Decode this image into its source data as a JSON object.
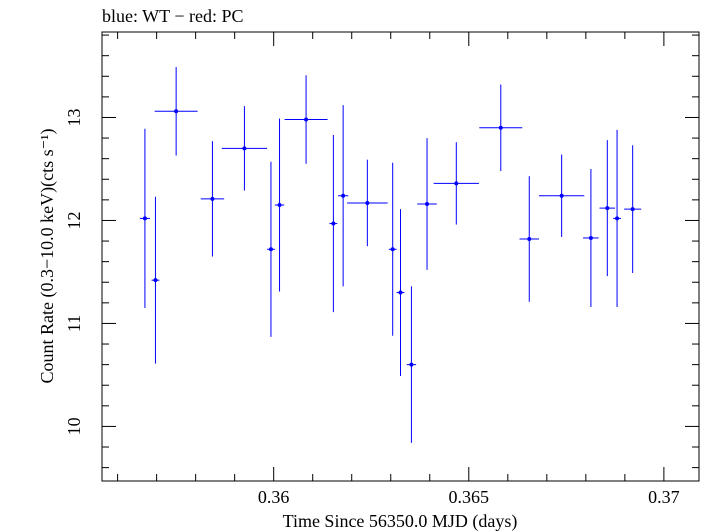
{
  "chart_data": {
    "type": "scatter",
    "title": "blue: WT − red: PC",
    "xlabel": "Time Since 56350.0 MJD (days)",
    "ylabel": "Count Rate (0.3−10.0 keV)(cts s⁻¹)",
    "xlim": [
      0.3556,
      0.3709
    ],
    "ylim": [
      9.47,
      13.83
    ],
    "xticks": [
      0.36,
      0.365,
      0.37
    ],
    "xtick_labels": [
      "0.36",
      "0.365",
      "0.37"
    ],
    "yticks": [
      10,
      11,
      12,
      13
    ],
    "ytick_labels": [
      "10",
      "11",
      "12",
      "13"
    ],
    "grid": false,
    "series": [
      {
        "color": "#0000ff",
        "points": [
          {
            "x": 0.3567,
            "xerr": 0.00013,
            "y": 12.02,
            "yerr": 0.87
          },
          {
            "x": 0.35697,
            "xerr": 0.0001,
            "y": 11.42,
            "yerr": 0.81
          },
          {
            "x": 0.3575,
            "xerr": 0.00055,
            "y": 13.06,
            "yerr": 0.43
          },
          {
            "x": 0.35843,
            "xerr": 0.0003,
            "y": 12.21,
            "yerr": 0.56
          },
          {
            "x": 0.35925,
            "xerr": 0.00058,
            "y": 12.7,
            "yerr": 0.41
          },
          {
            "x": 0.35993,
            "xerr": 0.0001,
            "y": 11.72,
            "yerr": 0.85
          },
          {
            "x": 0.36015,
            "xerr": 0.00012,
            "y": 12.15,
            "yerr": 0.84
          },
          {
            "x": 0.36083,
            "xerr": 0.00055,
            "y": 12.98,
            "yerr": 0.43
          },
          {
            "x": 0.36153,
            "xerr": 0.0001,
            "y": 11.97,
            "yerr": 0.86
          },
          {
            "x": 0.36178,
            "xerr": 0.00013,
            "y": 12.24,
            "yerr": 0.88
          },
          {
            "x": 0.3624,
            "xerr": 0.00052,
            "y": 12.17,
            "yerr": 0.42
          },
          {
            "x": 0.36305,
            "xerr": 0.0001,
            "y": 11.72,
            "yerr": 0.84
          },
          {
            "x": 0.36325,
            "xerr": 0.0001,
            "y": 11.3,
            "yerr": 0.81
          },
          {
            "x": 0.36353,
            "xerr": 0.00012,
            "y": 10.6,
            "yerr": 0.76
          },
          {
            "x": 0.36393,
            "xerr": 0.00025,
            "y": 12.16,
            "yerr": 0.64
          },
          {
            "x": 0.36468,
            "xerr": 0.00058,
            "y": 12.36,
            "yerr": 0.4
          },
          {
            "x": 0.36582,
            "xerr": 0.00055,
            "y": 12.9,
            "yerr": 0.42
          },
          {
            "x": 0.36655,
            "xerr": 0.00025,
            "y": 11.82,
            "yerr": 0.61
          },
          {
            "x": 0.36738,
            "xerr": 0.00058,
            "y": 12.24,
            "yerr": 0.4
          },
          {
            "x": 0.36813,
            "xerr": 0.0002,
            "y": 11.83,
            "yerr": 0.67
          },
          {
            "x": 0.36855,
            "xerr": 0.0002,
            "y": 12.12,
            "yerr": 0.66
          },
          {
            "x": 0.3688,
            "xerr": 0.0001,
            "y": 12.02,
            "yerr": 0.86
          },
          {
            "x": 0.3692,
            "xerr": 0.00022,
            "y": 12.11,
            "yerr": 0.62
          }
        ]
      }
    ]
  }
}
